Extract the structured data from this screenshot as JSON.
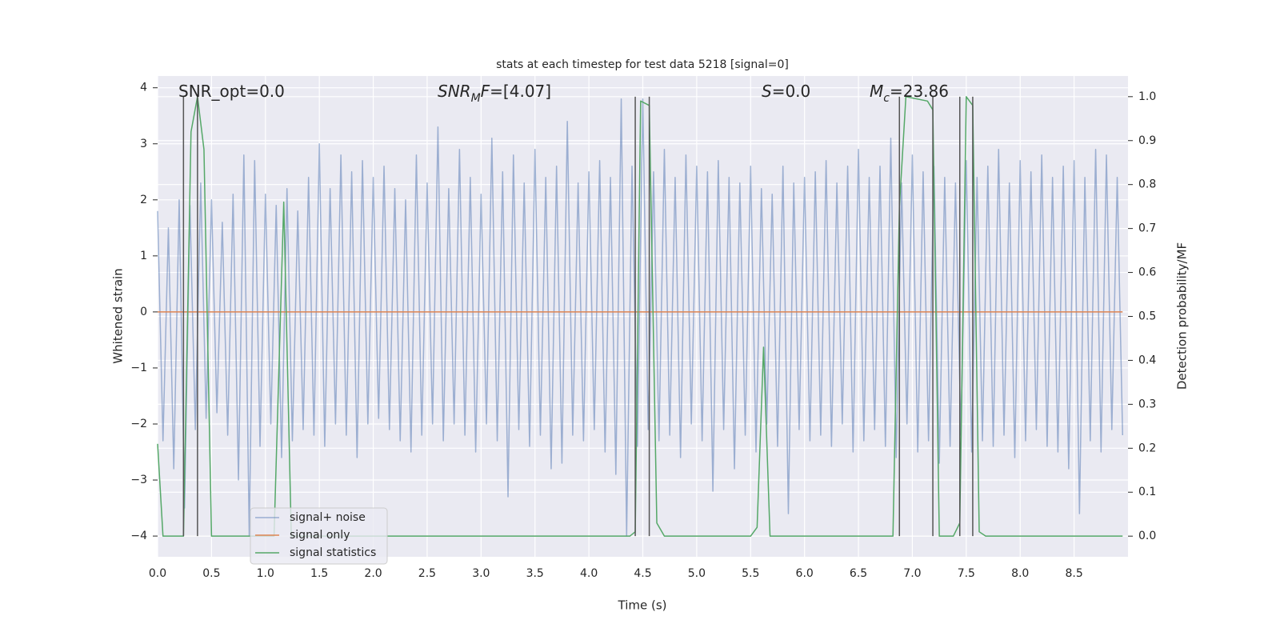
{
  "chart_data": {
    "type": "line",
    "title": "stats at each timestep for test data 5218 [signal=0]",
    "x_label": "Time (s)",
    "y_label": "Whitened strain",
    "y2_label": "Detection probability/MF",
    "xlim": [
      0,
      9.0
    ],
    "ylim": [
      -4.37,
      4.21
    ],
    "y2lim": [
      -0.047,
      1.047
    ],
    "xticks": [
      {
        "value": 0,
        "label": "0.0"
      },
      0.5,
      {
        "value": 1,
        "label": "1.0"
      },
      1.5,
      {
        "value": 2,
        "label": "2.0"
      },
      2.5,
      {
        "value": 3,
        "label": "3.0"
      },
      3.5,
      {
        "value": 4,
        "label": "4.0"
      },
      4.5,
      {
        "value": 5,
        "label": "5.0"
      },
      5.5,
      {
        "value": 6,
        "label": "6.0"
      },
      6.5,
      {
        "value": 7,
        "label": "7.0"
      },
      7.5,
      {
        "value": 8,
        "label": "8.0"
      },
      8.5
    ],
    "yticks": [
      {
        "value": -4,
        "label": "−4"
      },
      {
        "value": -3,
        "label": "−3"
      },
      {
        "value": -2,
        "label": "−2"
      },
      {
        "value": -1,
        "label": "−1"
      },
      0,
      1,
      2,
      3,
      4
    ],
    "y2ticks": [
      {
        "value": 0,
        "label": "0.0"
      },
      0.1,
      0.2,
      0.3,
      0.4,
      0.5,
      0.6,
      0.7,
      0.8,
      0.9,
      {
        "value": 1,
        "label": "1.0"
      }
    ],
    "grid": true,
    "series": [
      {
        "name": "signal+ noise",
        "color": "#4c72b0",
        "opacity": 0.5,
        "x": [
          0,
          0.05,
          0.1,
          0.15,
          0.2,
          0.25,
          0.3,
          0.35,
          0.4,
          0.45,
          0.5,
          0.55,
          0.6,
          0.65,
          0.7,
          0.75,
          0.8,
          0.85,
          0.9,
          0.95,
          1,
          1.05,
          1.1,
          1.15,
          1.2,
          1.25,
          1.3,
          1.35,
          1.4,
          1.45,
          1.5,
          1.55,
          1.6,
          1.65,
          1.7,
          1.75,
          1.8,
          1.85,
          1.9,
          1.95,
          2,
          2.05,
          2.1,
          2.15,
          2.2,
          2.25,
          2.3,
          2.35,
          2.4,
          2.45,
          2.5,
          2.55,
          2.6,
          2.65,
          2.7,
          2.75,
          2.8,
          2.85,
          2.9,
          2.95,
          3,
          3.05,
          3.1,
          3.15,
          3.2,
          3.25,
          3.3,
          3.35,
          3.4,
          3.45,
          3.5,
          3.55,
          3.6,
          3.65,
          3.7,
          3.75,
          3.8,
          3.85,
          3.9,
          3.95,
          4,
          4.05,
          4.1,
          4.15,
          4.2,
          4.25,
          4.3,
          4.35,
          4.4,
          4.45,
          4.5,
          4.55,
          4.6,
          4.65,
          4.7,
          4.75,
          4.8,
          4.85,
          4.9,
          4.95,
          5,
          5.05,
          5.1,
          5.15,
          5.2,
          5.25,
          5.3,
          5.35,
          5.4,
          5.45,
          5.5,
          5.55,
          5.6,
          5.65,
          5.7,
          5.75,
          5.8,
          5.85,
          5.9,
          5.95,
          6,
          6.05,
          6.1,
          6.15,
          6.2,
          6.25,
          6.3,
          6.35,
          6.4,
          6.45,
          6.5,
          6.55,
          6.6,
          6.65,
          6.7,
          6.75,
          6.8,
          6.85,
          6.9,
          6.95,
          7,
          7.05,
          7.1,
          7.15,
          7.2,
          7.25,
          7.3,
          7.35,
          7.4,
          7.45,
          7.5,
          7.55,
          7.6,
          7.65,
          7.7,
          7.75,
          7.8,
          7.85,
          7.9,
          7.95,
          8,
          8.05,
          8.1,
          8.15,
          8.2,
          8.25,
          8.3,
          8.35,
          8.4,
          8.45,
          8.5,
          8.55,
          8.6,
          8.65,
          8.7,
          8.75,
          8.8,
          8.85,
          8.9,
          8.95
        ],
        "values": [
          1.8,
          -2.3,
          1.5,
          -2.8,
          2.0,
          -3.5,
          1.9,
          -2.1,
          2.3,
          -1.9,
          2.0,
          -1.8,
          1.6,
          -2.2,
          2.1,
          -3.0,
          2.8,
          -4.0,
          2.7,
          -2.4,
          2.1,
          -2.0,
          1.9,
          -2.6,
          2.2,
          -2.3,
          1.8,
          -2.1,
          2.4,
          -2.2,
          3.0,
          -2.4,
          2.2,
          -2.0,
          2.8,
          -2.2,
          2.5,
          -2.6,
          2.7,
          -2.0,
          2.4,
          -1.9,
          2.6,
          -2.1,
          2.2,
          -2.3,
          2.0,
          -2.5,
          2.8,
          -2.2,
          2.3,
          -2.0,
          3.3,
          -2.3,
          2.2,
          -2.0,
          2.9,
          -2.2,
          2.4,
          -2.5,
          2.1,
          -2.0,
          3.1,
          -2.3,
          2.5,
          -3.3,
          2.8,
          -2.1,
          2.3,
          -2.4,
          2.9,
          -2.2,
          2.4,
          -2.8,
          2.6,
          -2.7,
          3.4,
          -2.2,
          2.3,
          -2.3,
          2.5,
          -2.1,
          2.7,
          -2.5,
          2.4,
          -2.9,
          3.8,
          -4.0,
          2.6,
          -2.4,
          3.8,
          -2.1,
          2.5,
          -2.3,
          2.9,
          -2.2,
          2.4,
          -2.6,
          2.8,
          -2.0,
          2.6,
          -2.3,
          2.5,
          -3.2,
          2.7,
          -2.1,
          2.4,
          -2.8,
          2.3,
          -2.2,
          2.6,
          -2.5,
          2.2,
          -2.0,
          2.1,
          -2.4,
          2.6,
          -3.6,
          2.3,
          -2.1,
          2.4,
          -2.3,
          2.5,
          -2.2,
          2.7,
          -2.4,
          2.3,
          -2.0,
          2.6,
          -2.5,
          2.9,
          -2.3,
          2.4,
          -2.1,
          2.6,
          -2.4,
          3.1,
          -2.6,
          2.3,
          -2.0,
          2.8,
          -2.5,
          2.5,
          -2.3,
          2.6,
          -2.7,
          2.4,
          -2.4,
          2.3,
          -2.2,
          2.7,
          -2.5,
          2.4,
          -2.3,
          2.6,
          -2.4,
          2.9,
          -2.2,
          2.3,
          -2.6,
          2.7,
          -2.3,
          2.5,
          -2.1,
          2.8,
          -2.4,
          2.4,
          -2.5,
          2.6,
          -2.8,
          2.7,
          -3.6,
          2.4,
          -2.3,
          2.9,
          -2.5,
          2.8,
          -2.1,
          2.4,
          -2.2
        ]
      },
      {
        "name": "signal only",
        "color": "#dd8452",
        "opacity": 1,
        "x": [
          0,
          8.95
        ],
        "values": [
          0,
          0
        ]
      },
      {
        "name": "signal statistics",
        "color": "#55a868",
        "opacity": 1,
        "axis": "y2",
        "x": [
          0,
          0.05,
          0.24,
          0.31,
          0.37,
          0.43,
          0.5,
          1.08,
          1.17,
          1.24,
          4.38,
          4.43,
          4.48,
          4.56,
          4.63,
          4.7,
          5.1,
          5.5,
          5.56,
          5.62,
          5.68,
          6.82,
          6.88,
          6.94,
          7.14,
          7.19,
          7.25,
          7.38,
          7.44,
          7.5,
          7.56,
          7.62,
          7.68,
          8.95
        ],
        "values": [
          0.21,
          0.0,
          0.0,
          0.92,
          1.0,
          0.88,
          0.0,
          0.0,
          0.76,
          0.0,
          0.0,
          0.01,
          0.99,
          0.98,
          0.03,
          0.0,
          0.0,
          0.0,
          0.02,
          0.43,
          0.0,
          0.0,
          0.75,
          1.0,
          0.99,
          0.97,
          0.0,
          0.0,
          0.03,
          1.0,
          0.98,
          0.01,
          0.0,
          0.0
        ]
      }
    ],
    "vlines": {
      "axis": "y2",
      "color": "#555555",
      "ymin": 0,
      "ymax": 1,
      "x": [
        0.24,
        0.37,
        4.43,
        4.56,
        6.88,
        7.19,
        7.44,
        7.56
      ]
    },
    "annotations": [
      {
        "parts": [
          {
            "text": "SNR_opt=0.0"
          }
        ]
      },
      {
        "parts": [
          {
            "text": "SNR",
            "italic": true
          },
          {
            "text": "M",
            "italic": true,
            "sub": true
          },
          {
            "text": "F",
            "italic": true
          },
          {
            "text": "=[4.07]"
          }
        ]
      },
      {
        "parts": [
          {
            "text": "S",
            "italic": true
          },
          {
            "text": "=0.0"
          }
        ]
      },
      {
        "parts": [
          {
            "text": "M",
            "italic": true
          },
          {
            "text": "c",
            "italic": true,
            "sub": true
          },
          {
            "text": "=23.86"
          }
        ]
      }
    ]
  }
}
